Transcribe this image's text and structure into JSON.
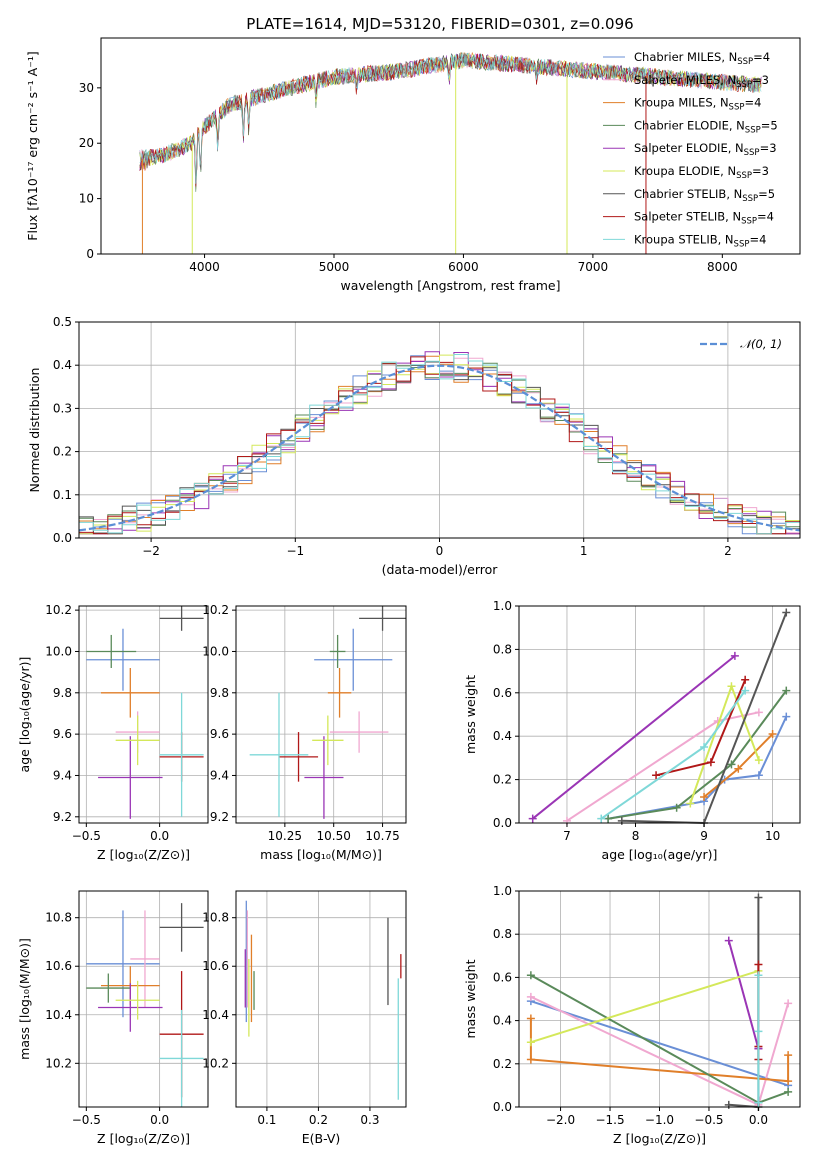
{
  "title": "PLATE=1614, MJD=53120, FIBERID=0301, z=0.096",
  "models": [
    {
      "name": "Chabrier MILES, N<sub>SSP</sub>=4",
      "label": "Chabrier MILES, N",
      "sub": "SSP",
      "suffix": "=4",
      "color": "#6a8fd6"
    },
    {
      "name": "Salpeter MILES",
      "label": "Salpeter MILES, N",
      "sub": "SSP",
      "suffix": "=3",
      "color": "#f0a8d0"
    },
    {
      "name": "Kroupa MILES",
      "label": "Kroupa MILES, N",
      "sub": "SSP",
      "suffix": "=4",
      "color": "#e07f2a"
    },
    {
      "name": "Chabrier ELODIE",
      "label": "Chabrier ELODIE, N",
      "sub": "SSP",
      "suffix": "=5",
      "color": "#5a8a5a"
    },
    {
      "name": "Salpeter ELODIE",
      "label": "Salpeter ELODIE, N",
      "sub": "SSP",
      "suffix": "=3",
      "color": "#9a35b5"
    },
    {
      "name": "Kroupa ELODIE",
      "label": "Kroupa ELODIE, N",
      "sub": "SSP",
      "suffix": "=3",
      "color": "#d4e85a"
    },
    {
      "name": "Chabrier STELIB",
      "label": "Chabrier STELIB, N",
      "sub": "SSP",
      "suffix": "=5",
      "color": "#555555"
    },
    {
      "name": "Salpeter STELIB",
      "label": "Salpeter STELIB, N",
      "sub": "SSP",
      "suffix": "=4",
      "color": "#b01818"
    },
    {
      "name": "Kroupa STELIB",
      "label": "Kroupa STELIB, N",
      "sub": "SSP",
      "suffix": "=4",
      "color": "#7fd8d8"
    }
  ],
  "chart_data": [
    {
      "type": "line",
      "id": "spectrum",
      "xlabel": "wavelength [Angstrom, rest frame]",
      "ylabel": "Flux [fλ10⁻¹⁷ erg cm⁻² s⁻¹ A⁻¹]",
      "xlim": [
        3200,
        8600
      ],
      "ylim": [
        0,
        39
      ],
      "xticks": [
        4000,
        5000,
        6000,
        7000,
        8000
      ],
      "yticks": [
        0,
        10,
        20,
        30
      ],
      "continuum": {
        "x": [
          3500,
          3700,
          3900,
          4000,
          4200,
          4500,
          5000,
          5500,
          6000,
          6500,
          7000,
          7500,
          8000,
          8300
        ],
        "y": [
          17,
          18,
          20,
          23,
          27,
          29,
          32,
          33,
          35,
          34,
          33,
          32,
          31,
          30.5
        ]
      }
    },
    {
      "type": "bar",
      "id": "residuals",
      "xlabel": "(data-model)/error",
      "ylabel": "Normed distribution",
      "xlim": [
        -2.5,
        2.5
      ],
      "ylim": [
        0,
        0.5
      ],
      "xticks": [
        -2,
        -1,
        0,
        1,
        2
      ],
      "yticks": [
        0.0,
        0.1,
        0.2,
        0.3,
        0.4,
        0.5
      ],
      "legend": "𝒩(0, 1)",
      "legend_position": "top-right",
      "bin_width": 0.1
    },
    {
      "type": "scatter",
      "id": "age_vs_Z",
      "xlabel": "Z [log₁₀(Z/Z⊙)]",
      "ylabel": "age  [log₁₀(age/yr)]",
      "xlim": [
        -0.55,
        0.33
      ],
      "ylim": [
        9.17,
        10.22
      ],
      "xticks": [
        -0.5,
        0.0
      ],
      "yticks": [
        9.2,
        9.4,
        9.6,
        9.8,
        10.0,
        10.2
      ],
      "points": [
        {
          "x": -0.25,
          "xerr": 0.25,
          "y": 9.96,
          "yerr": 0.15,
          "model": 0
        },
        {
          "x": -0.15,
          "xerr": 0.15,
          "y": 9.61,
          "yerr": 0.1,
          "model": 1
        },
        {
          "x": -0.2,
          "xerr": 0.2,
          "y": 9.8,
          "yerr": 0.12,
          "model": 2
        },
        {
          "x": -0.33,
          "xerr": 0.17,
          "y": 10.0,
          "yerr": 0.08,
          "model": 3
        },
        {
          "x": -0.2,
          "xerr": 0.22,
          "y": 9.39,
          "yerr": 0.2,
          "model": 4
        },
        {
          "x": -0.15,
          "xerr": 0.15,
          "y": 9.57,
          "yerr": 0.12,
          "model": 5
        },
        {
          "x": 0.15,
          "xerr": 0.15,
          "y": 10.16,
          "yerr": 0.06,
          "model": 6
        },
        {
          "x": 0.15,
          "xerr": 0.15,
          "y": 9.49,
          "yerr": 0.12,
          "model": 7
        },
        {
          "x": 0.15,
          "xerr": 0.15,
          "y": 9.5,
          "yerr": 0.3,
          "model": 8
        }
      ]
    },
    {
      "type": "scatter",
      "id": "age_vs_mass",
      "xlabel": "mass [log₁₀(M/M⊙)]",
      "xlim": [
        10.0,
        10.87
      ],
      "ylim": [
        9.17,
        10.22
      ],
      "xticks": [
        10.25,
        10.5,
        10.75
      ],
      "yticks": [
        9.2,
        9.4,
        9.6,
        9.8,
        10.0,
        10.2
      ],
      "points": [
        {
          "x": 10.6,
          "xerr": 0.2,
          "y": 9.96,
          "yerr": 0.15,
          "model": 0
        },
        {
          "x": 10.63,
          "xerr": 0.15,
          "y": 9.61,
          "yerr": 0.1,
          "model": 1
        },
        {
          "x": 10.53,
          "xerr": 0.06,
          "y": 9.8,
          "yerr": 0.12,
          "model": 2
        },
        {
          "x": 10.52,
          "xerr": 0.04,
          "y": 10.0,
          "yerr": 0.08,
          "model": 3
        },
        {
          "x": 10.45,
          "xerr": 0.1,
          "y": 9.39,
          "yerr": 0.2,
          "model": 4
        },
        {
          "x": 10.47,
          "xerr": 0.08,
          "y": 9.57,
          "yerr": 0.12,
          "model": 5
        },
        {
          "x": 10.75,
          "xerr": 0.12,
          "y": 10.16,
          "yerr": 0.06,
          "model": 6
        },
        {
          "x": 10.32,
          "xerr": 0.1,
          "y": 9.49,
          "yerr": 0.12,
          "model": 7
        },
        {
          "x": 10.22,
          "xerr": 0.15,
          "y": 9.5,
          "yerr": 0.3,
          "model": 8
        }
      ]
    },
    {
      "type": "line",
      "id": "massweight_vs_age",
      "xlabel": "age  [log₁₀(age/yr)]",
      "ylabel": "mass weight",
      "xlim": [
        6.3,
        10.4
      ],
      "ylim": [
        0,
        1
      ],
      "xticks": [
        7,
        8,
        9,
        10
      ],
      "yticks": [
        0.0,
        0.2,
        0.4,
        0.6,
        0.8,
        1.0
      ],
      "series": [
        {
          "model": 0,
          "x": [
            7.6,
            9.0,
            9.3,
            9.8,
            10.2
          ],
          "y": [
            0.02,
            0.1,
            0.2,
            0.22,
            0.49
          ]
        },
        {
          "model": 1,
          "x": [
            7.0,
            9.2,
            9.8
          ],
          "y": [
            0.01,
            0.47,
            0.51
          ]
        },
        {
          "model": 2,
          "x": [
            9.0,
            9.5,
            10.0
          ],
          "y": [
            0.12,
            0.25,
            0.41
          ]
        },
        {
          "model": 3,
          "x": [
            7.6,
            8.6,
            9.4,
            10.2
          ],
          "y": [
            0.02,
            0.07,
            0.27,
            0.61
          ]
        },
        {
          "model": 4,
          "x": [
            6.5,
            9.45
          ],
          "y": [
            0.02,
            0.77
          ]
        },
        {
          "model": 5,
          "x": [
            8.8,
            9.4,
            9.8
          ],
          "y": [
            0.09,
            0.63,
            0.29
          ]
        },
        {
          "model": 6,
          "x": [
            7.8,
            9.0,
            10.2
          ],
          "y": [
            0.01,
            0.0,
            0.97
          ]
        },
        {
          "model": 7,
          "x": [
            8.3,
            9.1,
            9.6
          ],
          "y": [
            0.22,
            0.28,
            0.66
          ]
        },
        {
          "model": 8,
          "x": [
            7.5,
            9.0,
            9.6
          ],
          "y": [
            0.02,
            0.35,
            0.61
          ]
        }
      ]
    },
    {
      "type": "scatter",
      "id": "mass_vs_Z",
      "xlabel": "Z [log₁₀(Z/Z⊙)]",
      "ylabel": "mass [log₁₀(M/M⊙)]",
      "xlim": [
        -0.55,
        0.33
      ],
      "ylim": [
        10.02,
        10.91
      ],
      "xticks": [
        -0.5,
        0.0
      ],
      "yticks": [
        10.2,
        10.4,
        10.6,
        10.8
      ],
      "points": [
        {
          "x": -0.25,
          "xerr": 0.25,
          "y": 10.61,
          "yerr": 0.22,
          "model": 0
        },
        {
          "x": -0.1,
          "xerr": 0.1,
          "y": 10.63,
          "yerr": 0.2,
          "model": 1
        },
        {
          "x": -0.2,
          "xerr": 0.2,
          "y": 10.52,
          "yerr": 0.08,
          "model": 2
        },
        {
          "x": -0.35,
          "xerr": 0.15,
          "y": 10.51,
          "yerr": 0.06,
          "model": 3
        },
        {
          "x": -0.2,
          "xerr": 0.22,
          "y": 10.43,
          "yerr": 0.1,
          "model": 4
        },
        {
          "x": -0.15,
          "xerr": 0.15,
          "y": 10.46,
          "yerr": 0.08,
          "model": 5
        },
        {
          "x": 0.15,
          "xerr": 0.15,
          "y": 10.76,
          "yerr": 0.1,
          "model": 6
        },
        {
          "x": 0.15,
          "xerr": 0.15,
          "y": 10.32,
          "yerr": 0.26,
          "model": 7
        },
        {
          "x": 0.15,
          "xerr": 0.15,
          "y": 10.22,
          "yerr": 0.2,
          "model": 8
        }
      ]
    },
    {
      "type": "scatter",
      "id": "mass_vs_ebv",
      "xlabel": "E(B-V)",
      "xlim": [
        0.04,
        0.37
      ],
      "ylim": [
        10.02,
        10.91
      ],
      "xticks": [
        0.1,
        0.2,
        0.3
      ],
      "yticks": [
        10.2,
        10.4,
        10.6,
        10.8
      ],
      "points": [
        {
          "x": 0.06,
          "y": 10.62,
          "yerr": 0.25,
          "model": 0
        },
        {
          "x": 0.062,
          "y": 10.63,
          "yerr": 0.2,
          "model": 1
        },
        {
          "x": 0.07,
          "y": 10.55,
          "yerr": 0.18,
          "model": 2
        },
        {
          "x": 0.075,
          "y": 10.5,
          "yerr": 0.08,
          "model": 3
        },
        {
          "x": 0.058,
          "y": 10.55,
          "yerr": 0.12,
          "model": 4
        },
        {
          "x": 0.065,
          "y": 10.47,
          "yerr": 0.16,
          "model": 5
        },
        {
          "x": 0.335,
          "y": 10.62,
          "yerr": 0.18,
          "model": 6
        },
        {
          "x": 0.36,
          "y": 10.6,
          "yerr": 0.05,
          "model": 7
        },
        {
          "x": 0.355,
          "y": 10.3,
          "yerr": 0.25,
          "model": 8
        }
      ]
    },
    {
      "type": "line",
      "id": "massweight_vs_Z",
      "xlabel": "Z [log₁₀(Z/Z⊙)]",
      "ylabel": "mass weight",
      "xlim": [
        -2.42,
        0.42
      ],
      "ylim": [
        0,
        1
      ],
      "xticks": [
        -2.0,
        -1.5,
        -1.0,
        -0.5,
        0.0
      ],
      "yticks": [
        0.0,
        0.2,
        0.4,
        0.6,
        0.8,
        1.0
      ],
      "series": [
        {
          "model": 0,
          "x": [
            -2.3,
            0.3
          ],
          "y": [
            0.49,
            0.1
          ]
        },
        {
          "model": 1,
          "x": [
            -2.3,
            0.0,
            0.3
          ],
          "y": [
            0.51,
            0.01,
            0.48
          ]
        },
        {
          "model": 2,
          "x": [
            -2.3,
            -2.3,
            0.3,
            0.3
          ],
          "y": [
            0.41,
            0.22,
            0.12,
            0.24
          ]
        },
        {
          "model": 3,
          "x": [
            -2.3,
            0.0,
            0.3
          ],
          "y": [
            0.61,
            0.02,
            0.07
          ]
        },
        {
          "model": 4,
          "x": [
            -0.3,
            0.0,
            0.0
          ],
          "y": [
            0.77,
            0.27,
            0.27
          ]
        },
        {
          "model": 5,
          "x": [
            -2.3,
            0.0
          ],
          "y": [
            0.3,
            0.63
          ]
        },
        {
          "model": 6,
          "x": [
            -0.3,
            0.0,
            0.0
          ],
          "y": [
            0.01,
            0.0,
            0.97
          ]
        },
        {
          "model": 7,
          "x": [
            0.0,
            0.0,
            0.0
          ],
          "y": [
            0.22,
            0.28,
            0.66
          ]
        },
        {
          "model": 8,
          "x": [
            0.0,
            0.0,
            0.0
          ],
          "y": [
            0.02,
            0.35,
            0.61
          ]
        }
      ]
    }
  ]
}
